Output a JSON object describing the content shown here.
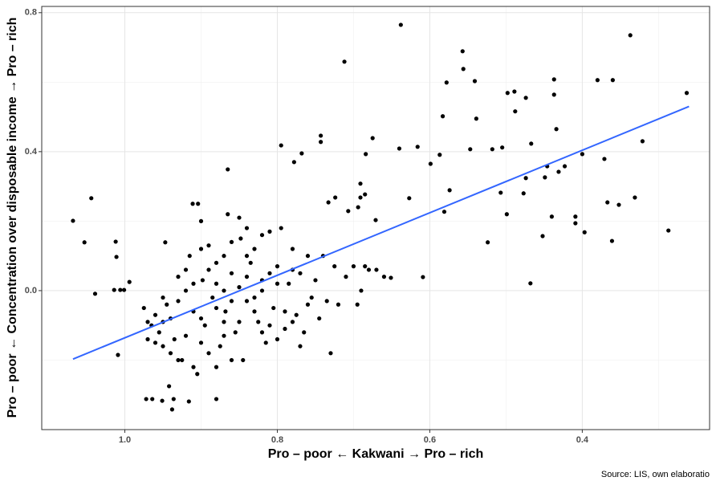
{
  "chart_data": {
    "type": "scatter",
    "xlabel": "Pro – poor ← Kakwani → Pro – rich",
    "ylabel": "Pro – poor ← Concentration over disposable income → Pro – rich",
    "caption": "Source: LIS, own elaboratio",
    "xlim": [
      1.109,
      0.233
    ],
    "ylim": [
      -0.4,
      0.818
    ],
    "xticks": [
      {
        "value": 1.0,
        "label": "1.0"
      },
      0.8,
      0.6,
      0.4
    ],
    "yticks": [
      {
        "value": 0,
        "label": "0.0"
      },
      0.4,
      0.8
    ],
    "xminor": [
      0.9,
      0.7,
      0.5,
      0.3
    ],
    "yminor": [
      -0.2,
      0.2,
      0.6
    ],
    "grid": true,
    "series": [
      {
        "color": "#000000",
        "x": [
          1.068,
          1.053,
          1.044,
          1.039,
          1.012,
          1.011,
          1.014,
          1.006,
          1.001,
          0.994,
          1.009,
          0.972,
          0.964,
          0.951,
          0.938,
          0.942,
          0.936,
          0.916,
          0.88,
          0.865,
          0.911,
          0.904,
          0.947,
          0.638,
          0.557,
          0.556,
          0.578,
          0.541,
          0.539,
          0.583,
          0.712,
          0.743,
          0.743,
          0.795,
          0.768,
          0.778,
          0.675,
          0.64,
          0.616,
          0.627,
          0.609,
          0.651,
          0.574,
          0.581,
          0.599,
          0.587,
          0.547,
          0.518,
          0.505,
          0.524,
          0.507,
          0.499,
          0.498,
          0.489,
          0.488,
          0.474,
          0.467,
          0.477,
          0.468,
          0.437,
          0.437,
          0.434,
          0.44,
          0.452,
          0.423,
          0.431,
          0.409,
          0.409,
          0.4,
          0.397,
          0.38,
          0.36,
          0.337,
          0.371,
          0.367,
          0.361,
          0.352,
          0.331,
          0.321,
          0.287,
          0.263,
          0.449,
          0.446,
          0.474,
          0.707,
          0.724,
          0.691,
          0.685,
          0.691,
          0.733,
          0.671,
          0.684,
          0.694,
          0.975,
          0.97,
          0.965,
          0.96,
          0.955,
          0.95,
          0.945,
          0.94,
          0.935,
          0.93,
          0.925,
          0.92,
          0.915,
          0.91,
          0.905,
          0.9,
          0.898,
          0.895,
          0.89,
          0.885,
          0.88,
          0.875,
          0.87,
          0.868,
          0.865,
          0.86,
          0.855,
          0.85,
          0.848,
          0.845,
          0.84,
          0.835,
          0.83,
          0.825,
          0.82,
          0.815,
          0.81,
          0.805,
          0.8,
          0.795,
          0.79,
          0.785,
          0.78,
          0.775,
          0.77,
          0.765,
          0.76,
          0.755,
          0.75,
          0.745,
          0.74,
          0.735,
          0.73,
          0.725,
          0.72,
          0.71,
          0.7,
          0.695,
          0.69,
          0.685,
          0.68,
          0.67,
          0.66,
          0.9,
          0.88,
          0.86,
          0.84,
          0.82,
          0.91,
          0.93,
          0.87,
          0.85,
          0.83,
          0.81,
          0.79,
          0.77,
          0.95,
          0.92,
          0.9,
          0.88,
          0.86,
          0.84,
          0.82,
          0.8,
          0.78,
          0.76,
          0.96,
          0.94,
          0.92,
          0.9,
          0.88,
          0.86,
          0.84,
          0.82,
          0.8,
          0.78,
          0.89,
          0.87,
          0.85,
          0.83,
          0.81,
          0.97,
          0.95,
          0.93,
          0.91,
          0.89,
          0.87
        ],
        "values": [
          0.201,
          0.139,
          0.266,
          -0.009,
          0.141,
          0.097,
          0.002,
          0.002,
          0.002,
          0.025,
          -0.185,
          -0.312,
          -0.312,
          -0.317,
          -0.342,
          -0.275,
          -0.312,
          -0.319,
          -0.312,
          0.349,
          0.25,
          0.25,
          0.139,
          0.765,
          0.689,
          0.638,
          0.599,
          0.603,
          0.495,
          0.502,
          0.659,
          0.446,
          0.428,
          0.418,
          0.395,
          0.37,
          0.439,
          0.409,
          0.414,
          0.266,
          0.039,
          0.037,
          0.289,
          0.227,
          0.365,
          0.391,
          0.407,
          0.407,
          0.412,
          0.139,
          0.282,
          0.22,
          0.569,
          0.573,
          0.516,
          0.555,
          0.423,
          0.28,
          0.021,
          0.608,
          0.564,
          0.465,
          0.213,
          0.157,
          0.358,
          0.342,
          0.213,
          0.194,
          0.393,
          0.168,
          0.606,
          0.606,
          0.735,
          0.379,
          0.254,
          0.143,
          0.247,
          0.268,
          0.43,
          0.173,
          0.569,
          0.326,
          0.358,
          0.324,
          0.229,
          0.268,
          0.268,
          0.277,
          0.308,
          0.254,
          0.203,
          0.393,
          0.24,
          -0.05,
          -0.09,
          -0.1,
          -0.15,
          -0.12,
          -0.16,
          -0.04,
          -0.08,
          -0.14,
          0.04,
          -0.2,
          0.0,
          0.1,
          -0.06,
          -0.24,
          0.2,
          0.03,
          -0.1,
          0.13,
          -0.02,
          0.08,
          -0.16,
          0.0,
          -0.06,
          0.22,
          0.05,
          -0.12,
          0.01,
          0.15,
          -0.2,
          -0.03,
          0.08,
          0.12,
          -0.09,
          0.03,
          -0.15,
          0.17,
          -0.05,
          0.07,
          0.18,
          -0.11,
          0.02,
          0.12,
          -0.07,
          0.05,
          -0.12,
          0.1,
          -0.02,
          0.03,
          -0.08,
          0.1,
          -0.03,
          -0.18,
          0.07,
          -0.04,
          0.04,
          0.07,
          -0.04,
          0.0,
          0.07,
          0.06,
          0.06,
          0.04,
          0.12,
          -0.22,
          -0.2,
          0.18,
          0.16,
          -0.22,
          -0.2,
          -0.13,
          -0.09,
          -0.06,
          -0.1,
          -0.06,
          -0.16,
          -0.02,
          0.06,
          -0.08,
          -0.05,
          0.14,
          0.1,
          -0.12,
          -0.14,
          -0.09,
          -0.04,
          -0.07,
          -0.18,
          -0.13,
          -0.15,
          0.02,
          -0.03,
          0.04,
          0.0,
          0.02,
          0.06,
          -0.18,
          0.1,
          0.21,
          -0.02,
          0.05,
          -0.14,
          -0.09,
          -0.03,
          0.02,
          0.06,
          -0.09
        ]
      }
    ],
    "trend": {
      "color": "#3366ff",
      "x": [
        1.068,
        0.26
      ],
      "values": [
        -0.197,
        0.53
      ]
    }
  }
}
